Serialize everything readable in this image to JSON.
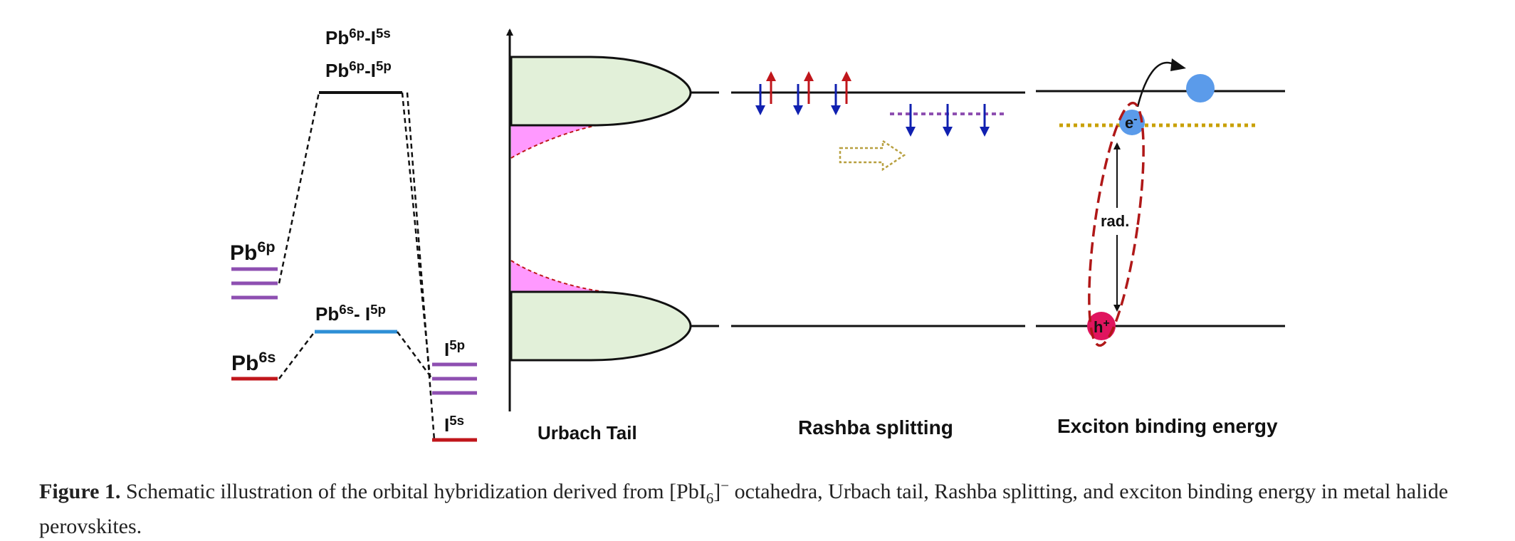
{
  "orbital": {
    "top_label_base": "Pb",
    "top_label_sup1": "6p",
    "top_label_mid": "-I",
    "top_label_sup2": "5s",
    "second_label_sup2": "5p",
    "pb6p_base": "Pb",
    "pb6p_sup": "6p",
    "pb6s_base": "Pb",
    "pb6s_sup": "6s",
    "mid_label_base": "Pb",
    "mid_label_sup1": "6s",
    "mid_label_mid": "- I",
    "mid_label_sup2": "5p",
    "i5p_base": "I",
    "i5p_sup": "5p",
    "i5s_base": "I",
    "i5s_sup": "5s",
    "colors": {
      "pb6p": "#8e4fb1",
      "pb6s": "#c0161b",
      "bonding": "#2e8fd6",
      "i5p": "#8e4fb1",
      "i5s": "#c0161b"
    }
  },
  "urbach": {
    "label": "Urbach Tail",
    "colors": {
      "band": "#e2f0d9",
      "tail": "#ff99ff",
      "tail_edge": "#c0161b"
    }
  },
  "rashba": {
    "label": "Rashba splitting",
    "colors": {
      "spin_down": "#1020b0",
      "spin_up": "#c0161b",
      "split_level": "#8e4fb1",
      "arrow": "#b8a040"
    }
  },
  "exciton": {
    "label": "Exciton binding energy",
    "electron_label": "e",
    "electron_sup": "-",
    "hole_label": "h",
    "hole_sup": "+",
    "rad_label": "rad.",
    "colors": {
      "electron": "#5b9bea",
      "hole": "#e0145e",
      "ellipse": "#b01818",
      "level": "#c8a000"
    }
  },
  "caption": {
    "fig_no": "Figure 1.",
    "text_before": " Schematic illustration of the orbital hybridization derived from [PbI",
    "sub": "6",
    "mid": "]",
    "sup": "−",
    "text_after": " octahedra, Urbach tail, Rashba splitting, and exciton binding energy in metal halide perovskites."
  }
}
